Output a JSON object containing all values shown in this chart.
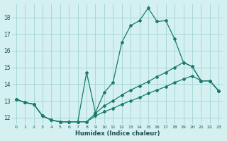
{
  "xlabel": "Humidex (Indice chaleur)",
  "background_color": "#d4f0f0",
  "grid_color": "#a8d8d8",
  "line_color": "#1a7a6e",
  "xlim": [
    -0.5,
    23.5
  ],
  "ylim": [
    11.6,
    18.8
  ],
  "yticks": [
    12,
    13,
    14,
    15,
    16,
    17,
    18
  ],
  "xticks": [
    0,
    1,
    2,
    3,
    4,
    5,
    6,
    7,
    8,
    9,
    10,
    11,
    12,
    13,
    14,
    15,
    16,
    17,
    18,
    19,
    20,
    21,
    22,
    23
  ],
  "line1_x": [
    0,
    1,
    2,
    3,
    4,
    5,
    6,
    7,
    8,
    9,
    10,
    11,
    12,
    13,
    14,
    15,
    16,
    17,
    18,
    19,
    20,
    21,
    22,
    23
  ],
  "line1_y": [
    13.1,
    12.9,
    12.8,
    12.1,
    11.85,
    11.75,
    11.75,
    11.75,
    14.7,
    12.3,
    13.5,
    14.1,
    16.5,
    17.5,
    17.8,
    18.55,
    17.75,
    17.8,
    16.7,
    15.3,
    15.05,
    14.2,
    14.2,
    13.6
  ],
  "line2_x": [
    0,
    1,
    2,
    3,
    4,
    5,
    6,
    7,
    8,
    9,
    10,
    11,
    12,
    13,
    14,
    15,
    16,
    17,
    18,
    19,
    20,
    21,
    22,
    23
  ],
  "line2_y": [
    13.1,
    12.9,
    12.8,
    12.1,
    11.85,
    11.75,
    11.75,
    11.75,
    11.75,
    12.25,
    12.7,
    13.0,
    13.35,
    13.65,
    13.9,
    14.15,
    14.45,
    14.7,
    15.0,
    15.3,
    15.05,
    14.2,
    14.2,
    13.6
  ],
  "line3_x": [
    0,
    1,
    2,
    3,
    4,
    5,
    6,
    7,
    8,
    9,
    10,
    11,
    12,
    13,
    14,
    15,
    16,
    17,
    18,
    19,
    20,
    21,
    22,
    23
  ],
  "line3_y": [
    13.1,
    12.9,
    12.8,
    12.1,
    11.85,
    11.75,
    11.75,
    11.75,
    11.75,
    12.1,
    12.35,
    12.55,
    12.8,
    13.0,
    13.2,
    13.45,
    13.65,
    13.85,
    14.1,
    14.3,
    14.5,
    14.2,
    14.2,
    13.6
  ]
}
